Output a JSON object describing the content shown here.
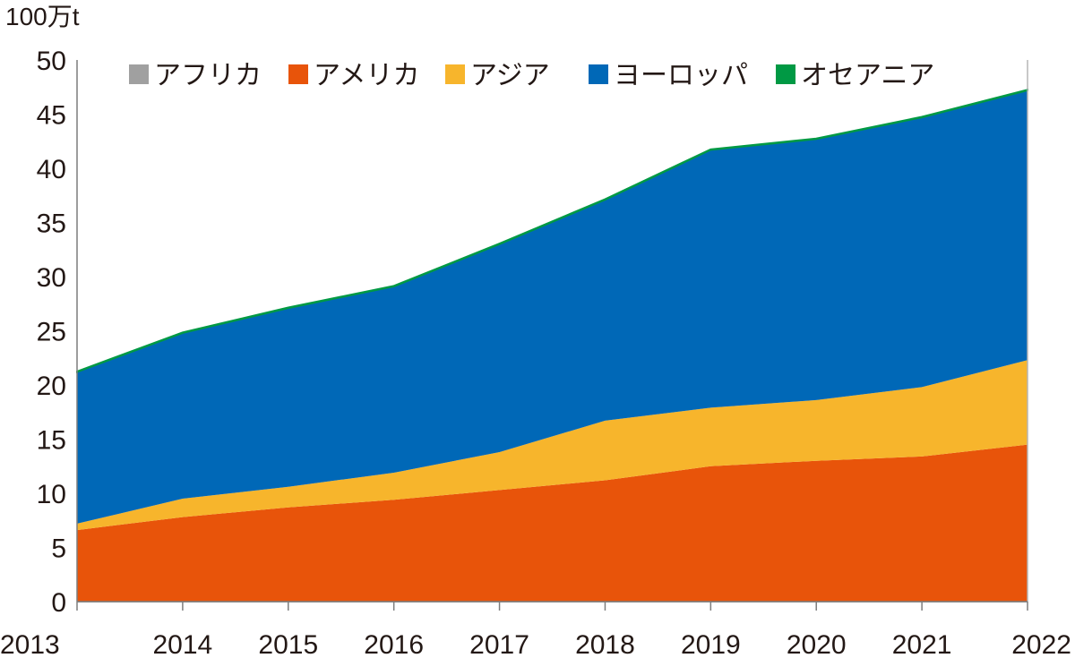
{
  "chart_data": {
    "type": "area",
    "stacked": true,
    "unit_label": "100万t",
    "categories": [
      "2013",
      "2014",
      "2015",
      "2016",
      "2017",
      "2018",
      "2019",
      "2020",
      "2021",
      "2022"
    ],
    "ylim": [
      0,
      50
    ],
    "yticks": [
      "0",
      "5",
      "10",
      "15",
      "20",
      "25",
      "30",
      "35",
      "40",
      "45",
      "50"
    ],
    "legend_position": "top",
    "grid": false,
    "series": [
      {
        "name": "アフリカ",
        "color": "#a0a0a0",
        "values": [
          0,
          0,
          0,
          0,
          0,
          0,
          0,
          0,
          0,
          0
        ]
      },
      {
        "name": "アメリカ",
        "color": "#e8540a",
        "values": [
          6.6,
          7.8,
          8.7,
          9.4,
          10.3,
          11.2,
          12.5,
          13.0,
          13.4,
          14.5
        ]
      },
      {
        "name": "アジア",
        "color": "#f7b52c",
        "values": [
          0.6,
          1.7,
          1.9,
          2.5,
          3.5,
          5.5,
          5.4,
          5.6,
          6.4,
          7.8
        ]
      },
      {
        "name": "ヨーロッパ",
        "color": "#0068b7",
        "values": [
          14.0,
          15.3,
          16.5,
          17.2,
          19.2,
          20.4,
          23.8,
          24.1,
          24.9,
          24.9
        ]
      },
      {
        "name": "オセアニア",
        "color": "#009944",
        "values": [
          0.05,
          0.05,
          0.05,
          0.05,
          0.05,
          0.05,
          0.05,
          0.05,
          0.05,
          0.05
        ]
      }
    ]
  }
}
